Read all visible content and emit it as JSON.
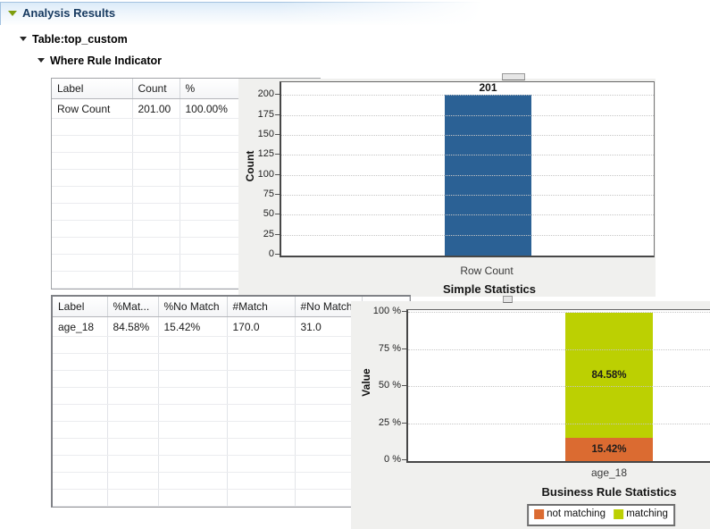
{
  "header": {
    "title": "Analysis Results"
  },
  "tree": {
    "table_label": "Table:top_custom",
    "indicator_label": "Where Rule Indicator"
  },
  "table1": {
    "columns": [
      "Label",
      "Count",
      "%"
    ],
    "rows": [
      [
        "Row Count",
        "201.00",
        "100.00%"
      ]
    ],
    "empty_rows": 10
  },
  "table2": {
    "columns": [
      "Label",
      "%Mat...",
      "%No Match",
      "#Match",
      "#No Match"
    ],
    "rows": [
      [
        "age_18",
        "84.58%",
        "15.42%",
        "170.0",
        "31.0"
      ]
    ],
    "empty_rows": 10
  },
  "chart_data": [
    {
      "type": "bar",
      "title": "Simple Statistics",
      "ylabel": "Count",
      "categories": [
        "Row Count"
      ],
      "series": [
        {
          "name": "Count",
          "values": [
            201
          ],
          "labels": [
            "201"
          ],
          "color": "#2B6195"
        }
      ],
      "ylim": [
        0,
        217
      ],
      "yticks": [
        {
          "v": 0,
          "label": "0"
        },
        {
          "v": 25,
          "label": "25"
        },
        {
          "v": 50,
          "label": "50"
        },
        {
          "v": 75,
          "label": "75"
        },
        {
          "v": 100,
          "label": "100"
        },
        {
          "v": 125,
          "label": "125"
        },
        {
          "v": 150,
          "label": "150"
        },
        {
          "v": 175,
          "label": "175"
        },
        {
          "v": 200,
          "label": "200"
        }
      ],
      "grid": "dotted-horizontal",
      "legend": null
    },
    {
      "type": "stacked_bar",
      "title": "Business Rule Statistics",
      "ylabel": "Value",
      "categories": [
        "age_18"
      ],
      "series": [
        {
          "name": "not matching",
          "values": [
            15.42
          ],
          "labels": [
            "15.42%"
          ],
          "color": "#DB6B31"
        },
        {
          "name": "matching",
          "values": [
            84.58
          ],
          "labels": [
            "84.58%"
          ],
          "color": "#BCD002"
        }
      ],
      "ylim": [
        0,
        102
      ],
      "yticks": [
        {
          "v": 0,
          "label": "0 %"
        },
        {
          "v": 25,
          "label": "25 %"
        },
        {
          "v": 50,
          "label": "50 %"
        },
        {
          "v": 75,
          "label": "75 %"
        },
        {
          "v": 100,
          "label": "100 %"
        }
      ],
      "grid": "dotted-horizontal",
      "legend": {
        "position": "bottom",
        "items": [
          "not matching",
          "matching"
        ]
      }
    }
  ]
}
